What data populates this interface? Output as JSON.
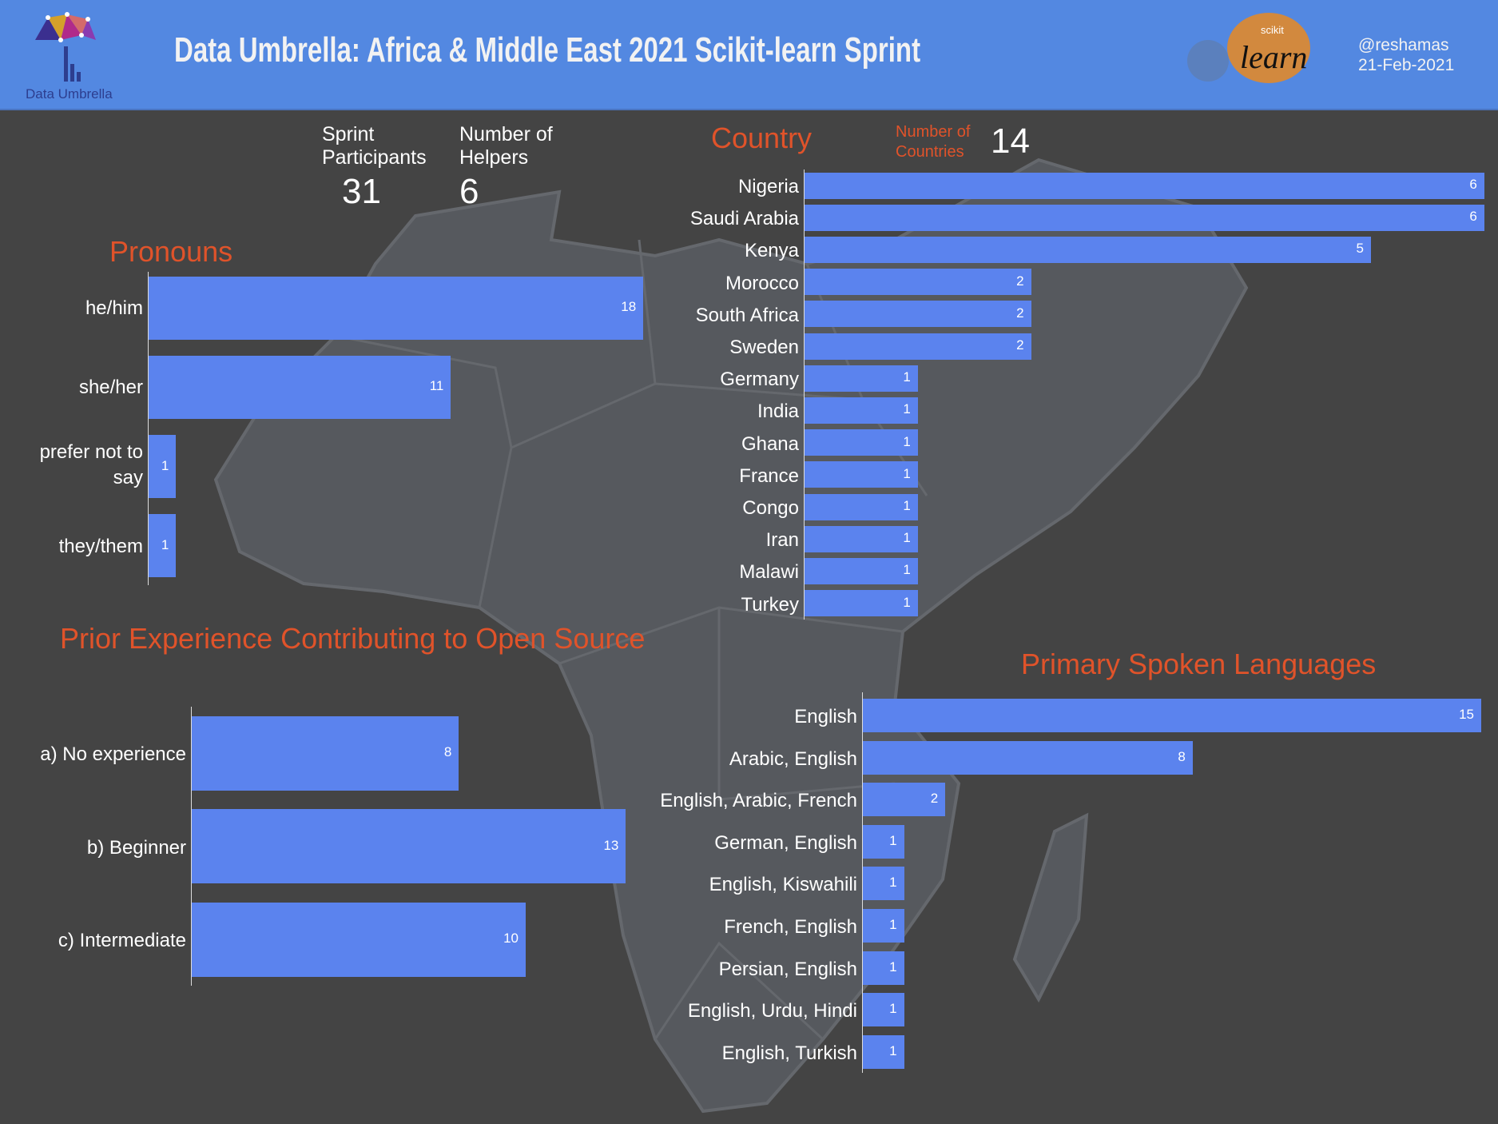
{
  "header": {
    "title": "Data Umbrella:  Africa & Middle East 2021 Scikit-learn Sprint",
    "logo_text": "Data Umbrella",
    "sklearn_logo_small": "scikit",
    "sklearn_logo_big": "learn",
    "handle": "@reshamas",
    "date": "21-Feb-2021"
  },
  "stats": {
    "participants_label_1": "Sprint",
    "participants_label_2": "Participants",
    "participants_value": "31",
    "helpers_label_1": "Number of",
    "helpers_label_2": "Helpers",
    "helpers_value": "6",
    "countries_label_1": "Number of",
    "countries_label_2": "Countries",
    "countries_value": "14"
  },
  "colors": {
    "bar": "#5b83ee",
    "title_accent": "#e0532a",
    "header": "#5388e1",
    "background": "#444444"
  },
  "chart_data": [
    {
      "type": "bar",
      "orientation": "horizontal",
      "title": "Country",
      "categories": [
        "Nigeria",
        "Saudi Arabia",
        "Kenya",
        "Morocco",
        "South Africa",
        "Sweden",
        "Germany",
        "India",
        "Ghana",
        "France",
        "Congo",
        "Iran",
        "Malawi",
        "Turkey"
      ],
      "values": [
        6,
        6,
        5,
        2,
        2,
        2,
        1,
        1,
        1,
        1,
        1,
        1,
        1,
        1
      ]
    },
    {
      "type": "bar",
      "orientation": "horizontal",
      "title": "Pronouns",
      "categories": [
        "he/him",
        "she/her",
        "prefer not to say",
        "they/them"
      ],
      "values": [
        18,
        11,
        1,
        1
      ]
    },
    {
      "type": "bar",
      "orientation": "horizontal",
      "title": "Prior Experience Contributing to Open Source",
      "categories": [
        "a) No experience",
        "b) Beginner",
        "c) Intermediate"
      ],
      "values": [
        8,
        13,
        10
      ]
    },
    {
      "type": "bar",
      "orientation": "horizontal",
      "title": "Primary Spoken Languages",
      "categories": [
        "English",
        "Arabic, English",
        "English, Arabic, French",
        "German, English",
        "English, Kiswahili",
        "French, English",
        "Persian, English",
        "English, Urdu, Hindi",
        "English, Turkish"
      ],
      "values": [
        15,
        8,
        2,
        1,
        1,
        1,
        1,
        1,
        1
      ]
    }
  ]
}
